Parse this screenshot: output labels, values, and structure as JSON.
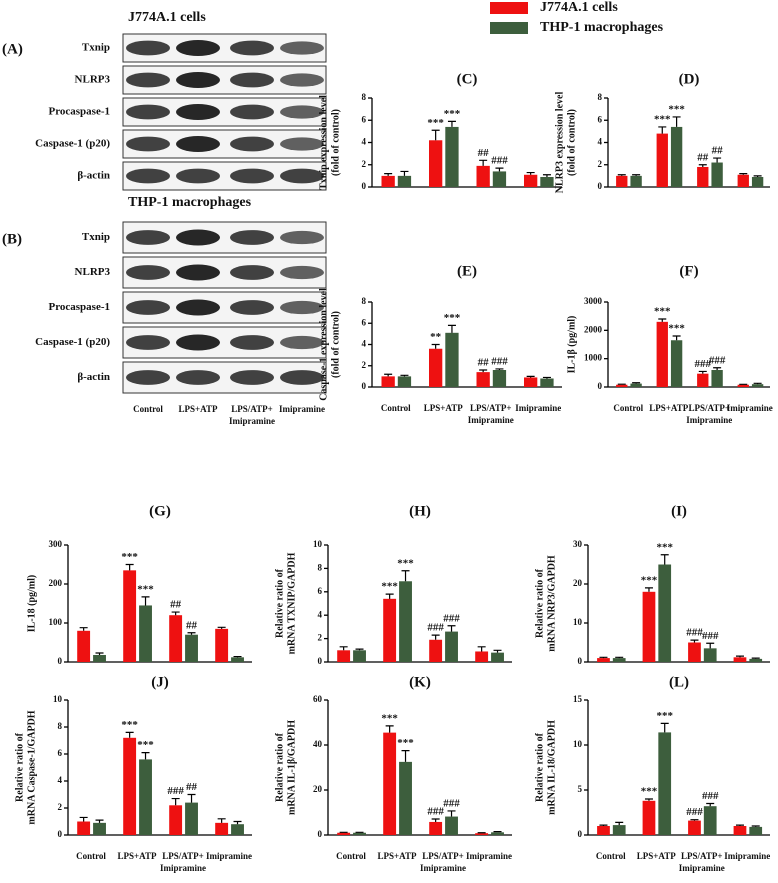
{
  "legend": [
    {
      "name": "J774A.1 cells",
      "color": "#ee1111"
    },
    {
      "name": "THP-1 macrophages",
      "color": "#3d5e3d"
    }
  ],
  "blots": [
    {
      "label": "(A)",
      "title": "J774A.1 cells",
      "rows": [
        "Txnip",
        "NLRP3",
        "Procaspase-1",
        "Caspase-1 (p20)",
        "β-actin"
      ]
    },
    {
      "label": "(B)",
      "title": "THP-1 macrophages",
      "rows": [
        "Txnip",
        "NLRP3",
        "Procaspase-1",
        "Caspase-1 (p20)",
        "β-actin"
      ],
      "lanes": [
        [
          "Control"
        ],
        [
          "LPS+ATP"
        ],
        [
          "LPS/ATP+",
          "Imipramine"
        ],
        [
          "Imipramine"
        ]
      ]
    }
  ],
  "chart_data": [
    {
      "type": "bar",
      "title": "(C)",
      "ylabel": [
        "Txnip expression level",
        "(fold of control)"
      ],
      "ylim": [
        0,
        8
      ],
      "yticks": [
        0,
        2,
        4,
        6,
        8
      ],
      "series": [
        {
          "color": "#ee1111",
          "values": [
            1.0,
            4.2,
            1.9,
            1.1
          ],
          "errors": [
            0.2,
            0.9,
            0.5,
            0.2
          ],
          "annotations": [
            null,
            "***",
            "##",
            null
          ]
        },
        {
          "color": "#3d5e3d",
          "values": [
            1.0,
            5.4,
            1.4,
            0.9
          ],
          "errors": [
            0.4,
            0.5,
            0.3,
            0.2
          ],
          "annotations": [
            null,
            "***",
            "###",
            null
          ]
        }
      ]
    },
    {
      "type": "bar",
      "title": "(D)",
      "ylabel": [
        "NLRP3 expression level",
        "(fold of control)"
      ],
      "ylim": [
        0,
        8
      ],
      "yticks": [
        0,
        2,
        4,
        6,
        8
      ],
      "series": [
        {
          "color": "#ee1111",
          "values": [
            1.0,
            4.8,
            1.8,
            1.1
          ],
          "errors": [
            0.1,
            0.6,
            0.2,
            0.1
          ],
          "annotations": [
            null,
            "***",
            "##",
            null
          ]
        },
        {
          "color": "#3d5e3d",
          "values": [
            1.0,
            5.4,
            2.2,
            0.9
          ],
          "errors": [
            0.1,
            0.9,
            0.4,
            0.1
          ],
          "annotations": [
            null,
            "***",
            "##",
            null
          ]
        }
      ]
    },
    {
      "type": "bar",
      "title": "(E)",
      "ylabel": [
        "Caspase-1 expression level",
        "(fold of control)"
      ],
      "ylim": [
        0,
        8
      ],
      "yticks": [
        0,
        2,
        4,
        6,
        8
      ],
      "categories": [
        [
          "Control"
        ],
        [
          "LPS+ATP"
        ],
        [
          "LPS/ATP+",
          "Imipramine"
        ],
        [
          "Imipramine"
        ]
      ],
      "series": [
        {
          "color": "#ee1111",
          "values": [
            1.0,
            3.6,
            1.4,
            0.9
          ],
          "errors": [
            0.2,
            0.4,
            0.2,
            0.1
          ],
          "annotations": [
            null,
            "**",
            "##",
            null
          ]
        },
        {
          "color": "#3d5e3d",
          "values": [
            1.0,
            5.1,
            1.6,
            0.8
          ],
          "errors": [
            0.1,
            0.7,
            0.1,
            0.1
          ],
          "annotations": [
            null,
            "***",
            "###",
            null
          ]
        }
      ]
    },
    {
      "type": "bar",
      "title": "(F)",
      "ylabel": [
        "IL-1β (pg/ml)"
      ],
      "ylim": [
        0,
        3000
      ],
      "yticks": [
        0,
        1000,
        2000,
        3000
      ],
      "categories": [
        [
          "Control"
        ],
        [
          "LPS+ATP"
        ],
        [
          "LPS/ATP+",
          "Imipramine"
        ],
        [
          "Imipramine"
        ]
      ],
      "series": [
        {
          "color": "#ee1111",
          "values": [
            80,
            2300,
            470,
            80
          ],
          "errors": [
            20,
            100,
            80,
            15
          ],
          "annotations": [
            null,
            "***",
            "###",
            null
          ]
        },
        {
          "color": "#3d5e3d",
          "values": [
            120,
            1650,
            600,
            100
          ],
          "errors": [
            30,
            150,
            80,
            30
          ],
          "annotations": [
            null,
            "***",
            "###",
            null
          ]
        }
      ]
    },
    {
      "type": "bar",
      "title": "(G)",
      "ylabel": [
        "IL-18 (pg/ml)"
      ],
      "ylim": [
        0,
        300
      ],
      "yticks": [
        0,
        100,
        200,
        300
      ],
      "series": [
        {
          "color": "#ee1111",
          "values": [
            80,
            235,
            120,
            85
          ],
          "errors": [
            8,
            15,
            8,
            4
          ],
          "annotations": [
            null,
            "***",
            "##",
            null
          ]
        },
        {
          "color": "#3d5e3d",
          "values": [
            18,
            145,
            70,
            12
          ],
          "errors": [
            5,
            22,
            5,
            2
          ],
          "annotations": [
            null,
            "***",
            "##",
            null
          ]
        }
      ]
    },
    {
      "type": "bar",
      "title": "(H)",
      "ylabel": [
        "Relative ratio of",
        "mRNA TXNIP/GAPDH"
      ],
      "ylim": [
        0,
        10
      ],
      "yticks": [
        0,
        2,
        4,
        6,
        8,
        10
      ],
      "series": [
        {
          "color": "#ee1111",
          "values": [
            1.0,
            5.4,
            1.9,
            0.9
          ],
          "errors": [
            0.3,
            0.4,
            0.4,
            0.4
          ],
          "annotations": [
            null,
            "***",
            "###",
            null
          ]
        },
        {
          "color": "#3d5e3d",
          "values": [
            1.0,
            6.9,
            2.6,
            0.8
          ],
          "errors": [
            0.1,
            0.9,
            0.5,
            0.2
          ],
          "annotations": [
            null,
            "***",
            "###",
            null
          ]
        }
      ]
    },
    {
      "type": "bar",
      "title": "(I)",
      "ylabel": [
        "Relative ratio of",
        "mRNA NRP3/GAPDH"
      ],
      "ylim": [
        0,
        30
      ],
      "yticks": [
        0,
        10,
        20,
        30
      ],
      "series": [
        {
          "color": "#ee1111",
          "values": [
            1.0,
            18,
            5,
            1.2
          ],
          "errors": [
            0.2,
            1,
            0.6,
            0.3
          ],
          "annotations": [
            null,
            "***",
            "###",
            null
          ]
        },
        {
          "color": "#3d5e3d",
          "values": [
            1.0,
            25,
            3.5,
            0.8
          ],
          "errors": [
            0.2,
            2.5,
            1.3,
            0.2
          ],
          "annotations": [
            null,
            "***",
            "###",
            null
          ]
        }
      ]
    },
    {
      "type": "bar",
      "title": "(J)",
      "ylabel": [
        "Relative ratio of",
        "mRNA Caspase-1/GAPDH"
      ],
      "ylim": [
        0,
        10
      ],
      "yticks": [
        0,
        2,
        4,
        6,
        8,
        10
      ],
      "categories": [
        [
          "Control"
        ],
        [
          "LPS+ATP"
        ],
        [
          "LPS/ATP+",
          "Imipramine"
        ],
        [
          "Imipramine"
        ]
      ],
      "series": [
        {
          "color": "#ee1111",
          "values": [
            1.0,
            7.2,
            2.2,
            0.9
          ],
          "errors": [
            0.3,
            0.4,
            0.5,
            0.3
          ],
          "annotations": [
            null,
            "***",
            "###",
            null
          ]
        },
        {
          "color": "#3d5e3d",
          "values": [
            0.9,
            5.6,
            2.4,
            0.8
          ],
          "errors": [
            0.2,
            0.5,
            0.6,
            0.2
          ],
          "annotations": [
            null,
            "***",
            "##",
            null
          ]
        }
      ]
    },
    {
      "type": "bar",
      "title": "(K)",
      "ylabel": [
        "Relative ratio of",
        "mRNA IL-1β/GAPDH"
      ],
      "ylim": [
        0,
        60
      ],
      "yticks": [
        0,
        20,
        40,
        60
      ],
      "categories": [
        [
          "Control"
        ],
        [
          "LPS+ATP"
        ],
        [
          "LPS/ATP+",
          "Imipramine"
        ],
        [
          "Imipramine"
        ]
      ],
      "series": [
        {
          "color": "#ee1111",
          "values": [
            1.0,
            45.5,
            5.8,
            0.8
          ],
          "errors": [
            0.2,
            3,
            1.3,
            0.2
          ],
          "annotations": [
            null,
            "***",
            "###",
            null
          ]
        },
        {
          "color": "#3d5e3d",
          "values": [
            1.0,
            32.5,
            8.2,
            1.2
          ],
          "errors": [
            0.2,
            5,
            2.5,
            0.3
          ],
          "annotations": [
            null,
            "***",
            "###",
            null
          ]
        }
      ]
    },
    {
      "type": "bar",
      "title": "(L)",
      "ylabel": [
        "Relative ratio of",
        "mRNA IL-18/GAPDH"
      ],
      "ylim": [
        0,
        15
      ],
      "yticks": [
        0,
        5,
        10,
        15
      ],
      "categories": [
        [
          "Control"
        ],
        [
          "LPS+ATP"
        ],
        [
          "LPS/ATP+",
          "Imipramine"
        ],
        [
          "Imipramine"
        ]
      ],
      "series": [
        {
          "color": "#ee1111",
          "values": [
            1.0,
            3.8,
            1.6,
            1.0
          ],
          "errors": [
            0.1,
            0.2,
            0.1,
            0.1
          ],
          "annotations": [
            null,
            "***",
            "###",
            null
          ]
        },
        {
          "color": "#3d5e3d",
          "values": [
            1.1,
            11.4,
            3.2,
            0.9
          ],
          "errors": [
            0.3,
            1.0,
            0.3,
            0.1
          ],
          "annotations": [
            null,
            "***",
            "###",
            null
          ]
        }
      ]
    }
  ]
}
